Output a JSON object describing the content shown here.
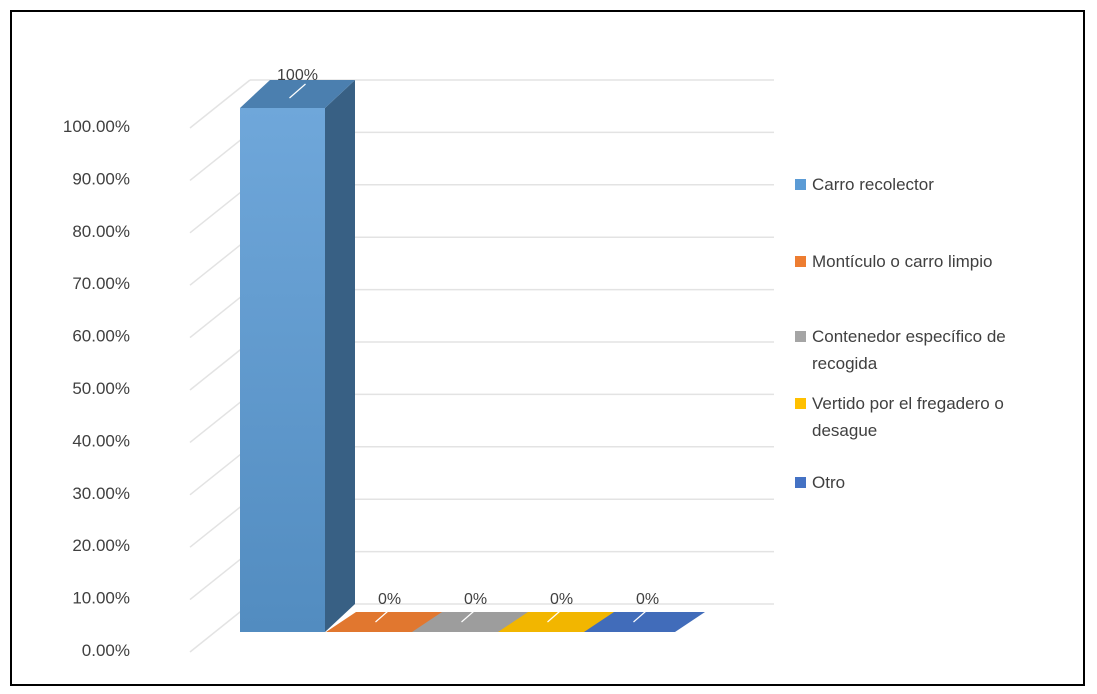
{
  "chart_data": {
    "type": "bar",
    "variant": "3d-column",
    "title": "",
    "xlabel": "",
    "ylabel": "",
    "ylim": [
      0,
      100
    ],
    "yticks": [
      "0.00%",
      "10.00%",
      "20.00%",
      "30.00%",
      "40.00%",
      "50.00%",
      "60.00%",
      "70.00%",
      "80.00%",
      "90.00%",
      "100.00%"
    ],
    "grid": true,
    "legend_position": "right",
    "series": [
      {
        "name": "Carro recolector",
        "value": 100,
        "label": "100%",
        "color": "#5B9BD5"
      },
      {
        "name": "Montículo o carro limpio",
        "value": 0,
        "label": "0%",
        "color": "#ED7D31"
      },
      {
        "name": "Contenedor específico de recogida",
        "value": 0,
        "label": "0%",
        "color": "#A5A5A5"
      },
      {
        "name": "Vertido por el fregadero o desague",
        "value": 0,
        "label": "0%",
        "color": "#FFC000"
      },
      {
        "name": "Otro",
        "value": 0,
        "label": "0%",
        "color": "#4472C4"
      }
    ],
    "legend_lines": [
      [
        "Carro recolector"
      ],
      [
        "Montículo o carro limpio"
      ],
      [
        "Contenedor específico de",
        "recogida"
      ],
      [
        "Vertido por el fregadero o",
        "desague"
      ],
      [
        "Otro"
      ]
    ]
  }
}
